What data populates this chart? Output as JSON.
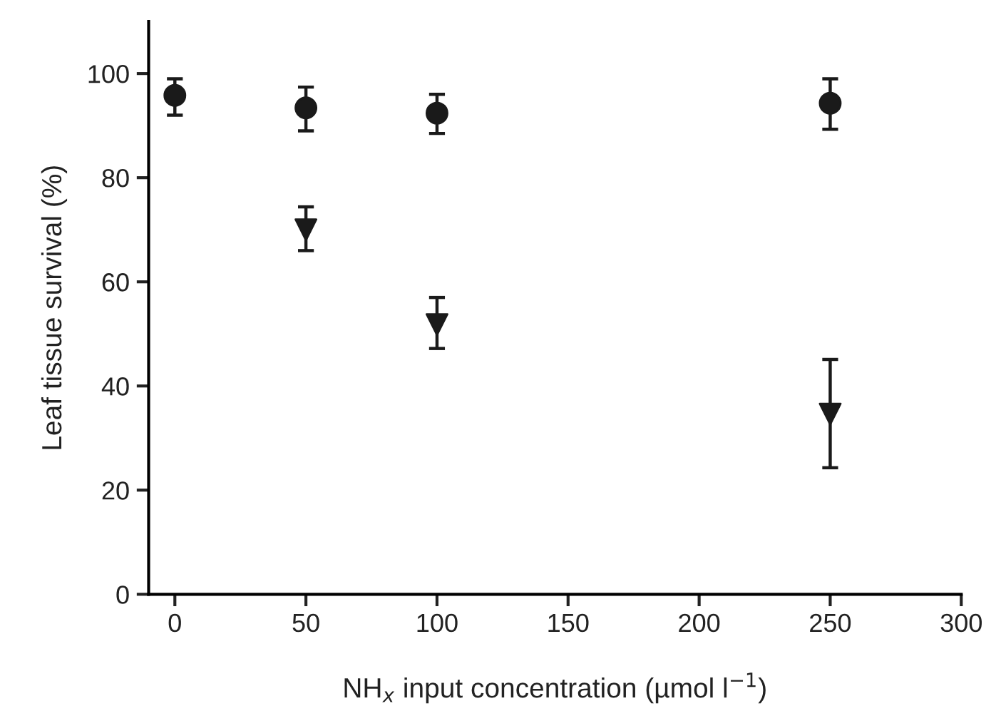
{
  "chart_data": {
    "type": "scatter",
    "xlabel": "NH$_{x}$ input concentration (µmol l$^{−1}$)",
    "ylabel": "Leaf tissue survival (%)",
    "x": [
      0,
      50,
      100,
      250
    ],
    "series": [
      {
        "color": "#1a1a1a",
        "marker": "circle",
        "values": [
          95.8,
          93.4,
          92.4,
          94.3
        ],
        "errors": [
          [
            92,
            99
          ],
          [
            89,
            97.4
          ],
          [
            88.5,
            96
          ],
          [
            89.3,
            99
          ]
        ]
      },
      {
        "color": "#1a1a1a",
        "marker": "triangle",
        "values": [
          null,
          70,
          51.8,
          34.6
        ],
        "errors": [
          null,
          [
            66,
            74.4
          ],
          [
            47.2,
            57
          ],
          [
            24.3,
            45.1
          ]
        ]
      }
    ],
    "xlim": [
      -10,
      300
    ],
    "ylim": [
      0,
      110
    ],
    "xticks": [
      0,
      50,
      100,
      150,
      200,
      250,
      300
    ],
    "yticks": [
      0,
      20,
      40,
      60,
      80,
      100
    ],
    "grid": false,
    "legend": false
  }
}
